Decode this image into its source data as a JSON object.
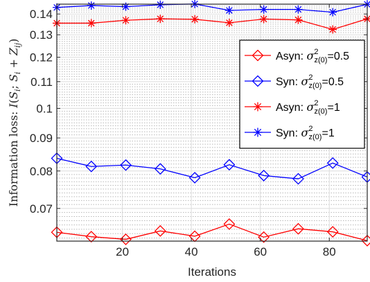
{
  "chart_data": {
    "type": "line",
    "title": "",
    "xlabel": "Iterations",
    "ylabel": "Information loss: I(S_i; S_i + Z_ij)",
    "y_scale": "log",
    "xlim": [
      1,
      91
    ],
    "ylim": [
      0.0623,
      0.145
    ],
    "xticks": [
      20,
      40,
      60,
      80
    ],
    "yticks": [
      0.07,
      0.08,
      0.09,
      0.1,
      0.11,
      0.12,
      0.13,
      0.14
    ],
    "ytick_labels": [
      "0.07",
      "0.08",
      "0.09",
      "0.1",
      "0.11",
      "0.12",
      "0.13",
      "0.14"
    ],
    "grid": true,
    "minor_grid": true,
    "legend_position": "right",
    "x": [
      1,
      11,
      21,
      31,
      41,
      51,
      61,
      71,
      81,
      91
    ],
    "series": [
      {
        "name": "Asyn: σ²z(0)=0.5",
        "legend": {
          "prefix": "Asyn: ",
          "sub": "z",
          "suffix": "=0.5"
        },
        "color": "#ff0000",
        "marker": "diamond",
        "values": [
          0.0643,
          0.0633,
          0.0627,
          0.0646,
          0.0634,
          0.0662,
          0.0632,
          0.0651,
          0.0644,
          0.0624
        ]
      },
      {
        "name": "Syn: σ²z(0)=0.5",
        "legend": {
          "prefix": "Syn: ",
          "sub": "z",
          "suffix": "=0.5"
        },
        "color": "#0000ff",
        "marker": "diamond",
        "values": [
          0.0837,
          0.0813,
          0.0817,
          0.0806,
          0.0781,
          0.0818,
          0.0787,
          0.0778,
          0.0823,
          0.0783
        ]
      },
      {
        "name": "Asyn: σ²z(0)=1",
        "legend": {
          "prefix": "Asyn: ",
          "sub": "z",
          "suffix": "=1"
        },
        "color": "#ff0000",
        "marker": "star",
        "values": [
          0.1355,
          0.1355,
          0.1369,
          0.1376,
          0.1374,
          0.1357,
          0.1375,
          0.1371,
          0.1325,
          0.1376
        ]
      },
      {
        "name": "Syn: σ²z(0)=1",
        "legend": {
          "prefix": "Syn: ",
          "sub": "z",
          "suffix": "=1"
        },
        "color": "#0000ff",
        "marker": "star",
        "values": [
          0.1433,
          0.1443,
          0.1437,
          0.1447,
          0.1451,
          0.1418,
          0.1423,
          0.1423,
          0.1409,
          0.1449
        ]
      }
    ]
  }
}
